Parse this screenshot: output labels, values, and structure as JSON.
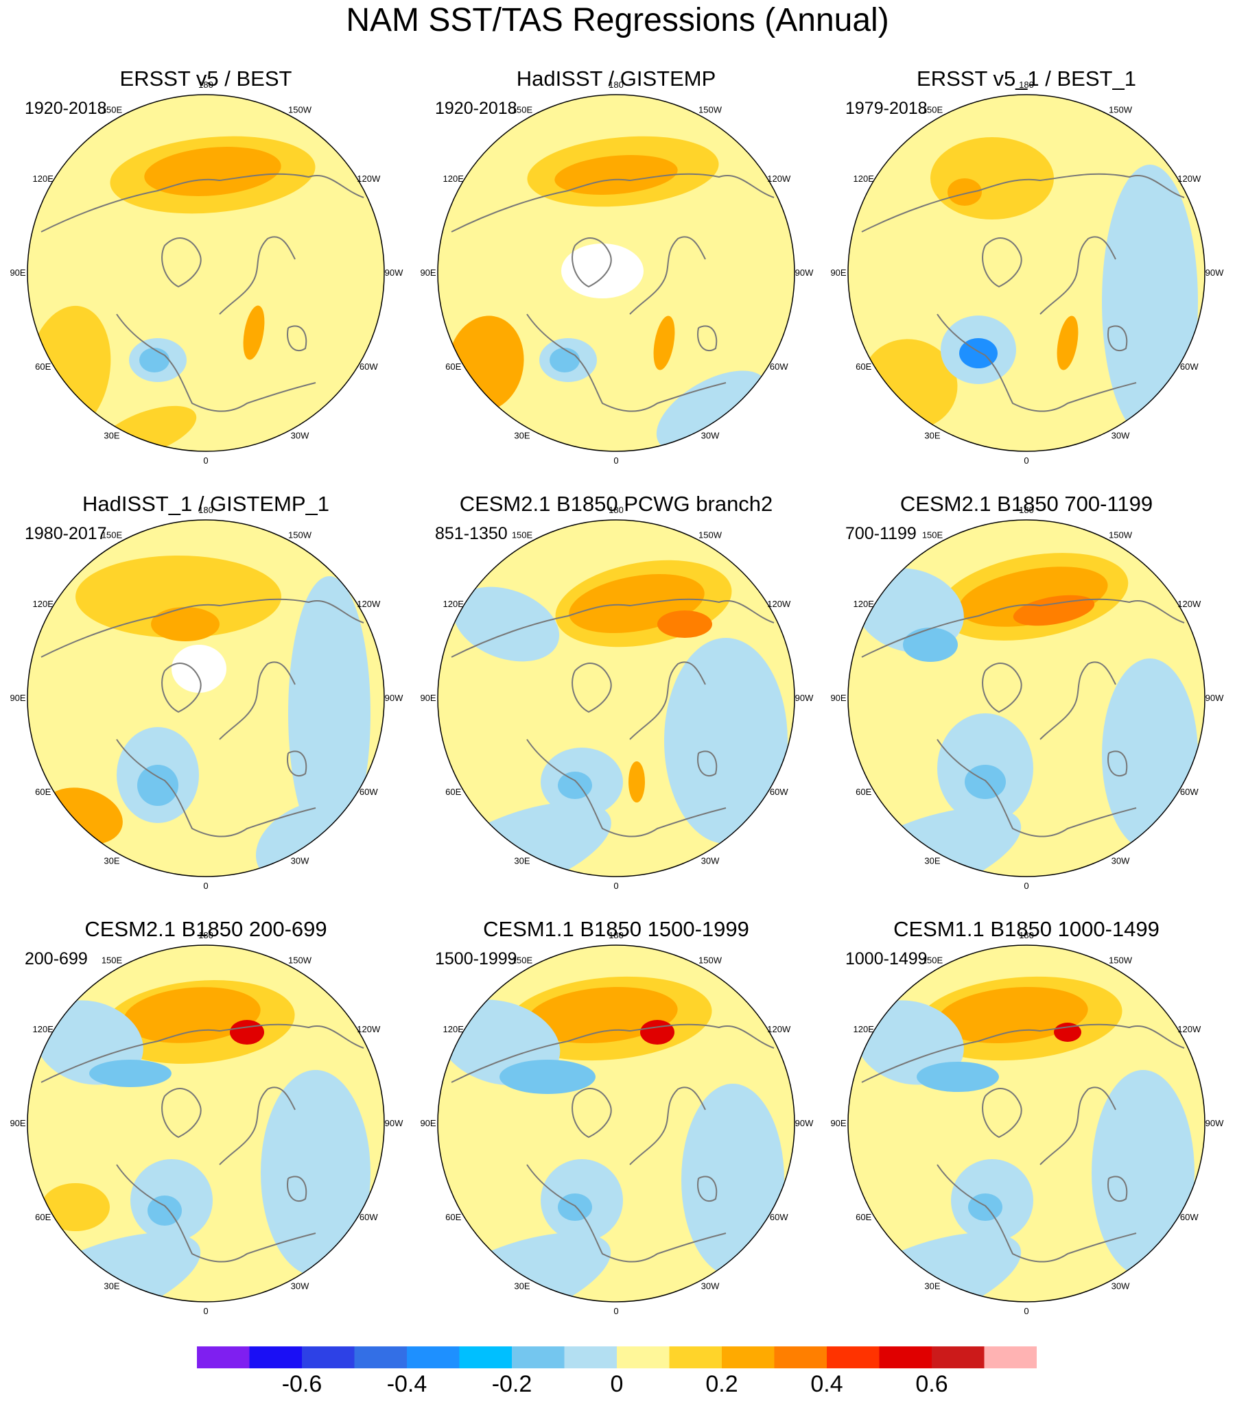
{
  "title": "NAM SST/TAS Regressions (Annual)",
  "panels": [
    {
      "title": "ERSST v5 / BEST",
      "years": "1920-2018"
    },
    {
      "title": "HadISST / GISTEMP",
      "years": "1920-2018"
    },
    {
      "title": "ERSST v5_1 / BEST_1",
      "years": "1979-2018"
    },
    {
      "title": "HadISST_1 / GISTEMP_1",
      "years": "1980-2017"
    },
    {
      "title": "CESM2.1 B1850 PCWG branch2",
      "years": "851-1350"
    },
    {
      "title": "CESM2.1 B1850 700-1199",
      "years": "700-1199"
    },
    {
      "title": "CESM2.1 B1850 200-699",
      "years": "200-699"
    },
    {
      "title": "CESM1.1 B1850 1500-1999",
      "years": "1500-1999"
    },
    {
      "title": "CESM1.1 B1850 1000-1499",
      "years": "1000-1499"
    }
  ],
  "longitude_labels": [
    "180",
    "150E",
    "120E",
    "90E",
    "60E",
    "30E",
    "0",
    "30W",
    "60W",
    "90W",
    "120W",
    "150W"
  ],
  "colorbar": {
    "colors": [
      "#7f1ff0",
      "#1a0ff5",
      "#2d41e6",
      "#336fe6",
      "#1e90ff",
      "#00bfff",
      "#74c6ef",
      "#b3dff2",
      "#fff799",
      "#ffd42a",
      "#ffaa00",
      "#ff7f00",
      "#ff3300",
      "#e00000",
      "#cc1a1a",
      "#ffb3b3"
    ],
    "tick_labels": [
      "-0.6",
      "-0.4",
      "-0.2",
      "0",
      "0.2",
      "0.4",
      "0.6"
    ]
  },
  "palette": {
    "ocean_background": "#fff799",
    "neg_light": "#b3dff2",
    "neg_mid": "#74c6ef",
    "neg_strong": "#1e90ff",
    "pos_light": "#ffd42a",
    "pos_mid": "#ffaa00",
    "pos_strong": "#ff7f00",
    "pos_extreme": "#e00000",
    "coast": "#777777"
  }
}
